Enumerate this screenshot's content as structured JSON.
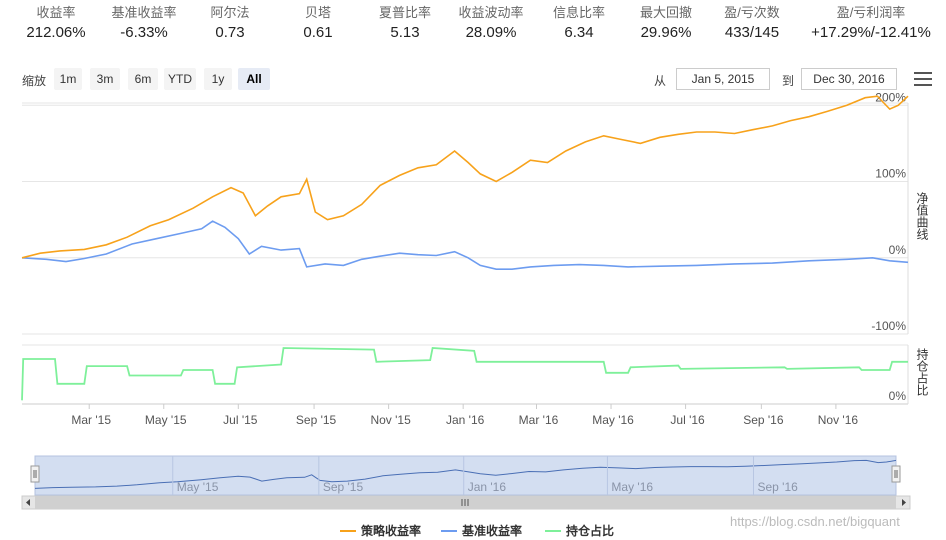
{
  "stats": [
    {
      "label": "收益率",
      "value": "212.06%"
    },
    {
      "label": "基准收益率",
      "value": "-6.33%"
    },
    {
      "label": "阿尔法",
      "value": "0.73"
    },
    {
      "label": "贝塔",
      "value": "0.61"
    },
    {
      "label": "夏普比率",
      "value": "5.13"
    },
    {
      "label": "收益波动率",
      "value": "28.09%"
    },
    {
      "label": "信息比率",
      "value": "6.34"
    },
    {
      "label": "最大回撤",
      "value": "29.96%"
    },
    {
      "label": "盈/亏次数",
      "value": "433/145"
    },
    {
      "label": "盈/亏利润率",
      "value": "+17.29%/-12.41%"
    }
  ],
  "toolbar": {
    "zoom_label": "缩放",
    "buttons": [
      "1m",
      "3m",
      "6m",
      "YTD",
      "1y",
      "All"
    ],
    "active": "All",
    "from_label": "从",
    "from_value": "Jan 5, 2015",
    "to_label": "到",
    "to_value": "Dec 30, 2016"
  },
  "colors": {
    "strategy": "#f7a21b",
    "benchmark": "#6d9cf0",
    "position": "#7ef09a",
    "navigator_fill": "#cbd8ef"
  },
  "chart_data": {
    "type": "line",
    "x_range": [
      "2015-01-05",
      "2016-12-30"
    ],
    "x_ticks": [
      "Mar '15",
      "May '15",
      "Jul '15",
      "Sep '15",
      "Nov '15",
      "Jan '16",
      "Mar '16",
      "May '16",
      "Jul '16",
      "Sep '16",
      "Nov '16"
    ],
    "navigator_ticks": [
      "May '15",
      "Sep '15",
      "Jan '16",
      "May '16",
      "Sep '16"
    ],
    "main_axis": {
      "title": "净值曲线",
      "ticks": [
        "200%",
        "100%",
        "0%",
        "-100%"
      ],
      "ylim": [
        -100,
        200
      ]
    },
    "position_axis": {
      "title": "持仓占比",
      "ticks": [
        "0%"
      ],
      "ylim": [
        0,
        100
      ]
    },
    "grid": true,
    "legend_position": "bottom",
    "series": [
      {
        "name": "策略收益率",
        "unit": "%",
        "points": [
          [
            "2015-01-05",
            0
          ],
          [
            "2015-01-20",
            6
          ],
          [
            "2015-02-05",
            9
          ],
          [
            "2015-02-25",
            11
          ],
          [
            "2015-03-15",
            17
          ],
          [
            "2015-04-01",
            27
          ],
          [
            "2015-04-20",
            42
          ],
          [
            "2015-05-05",
            50
          ],
          [
            "2015-05-25",
            65
          ],
          [
            "2015-06-10",
            80
          ],
          [
            "2015-06-25",
            92
          ],
          [
            "2015-07-05",
            85
          ],
          [
            "2015-07-15",
            55
          ],
          [
            "2015-07-25",
            68
          ],
          [
            "2015-08-05",
            80
          ],
          [
            "2015-08-20",
            84
          ],
          [
            "2015-08-26",
            103
          ],
          [
            "2015-09-02",
            60
          ],
          [
            "2015-09-12",
            50
          ],
          [
            "2015-09-25",
            55
          ],
          [
            "2015-10-10",
            70
          ],
          [
            "2015-10-25",
            95
          ],
          [
            "2015-11-10",
            108
          ],
          [
            "2015-11-25",
            118
          ],
          [
            "2015-12-10",
            122
          ],
          [
            "2015-12-25",
            140
          ],
          [
            "2016-01-05",
            125
          ],
          [
            "2016-01-15",
            110
          ],
          [
            "2016-01-28",
            100
          ],
          [
            "2016-02-10",
            112
          ],
          [
            "2016-02-25",
            128
          ],
          [
            "2016-03-10",
            125
          ],
          [
            "2016-03-25",
            140
          ],
          [
            "2016-04-10",
            152
          ],
          [
            "2016-04-25",
            160
          ],
          [
            "2016-05-10",
            155
          ],
          [
            "2016-05-25",
            150
          ],
          [
            "2016-06-10",
            158
          ],
          [
            "2016-06-25",
            162
          ],
          [
            "2016-07-10",
            165
          ],
          [
            "2016-07-25",
            165
          ],
          [
            "2016-08-10",
            163
          ],
          [
            "2016-08-25",
            168
          ],
          [
            "2016-09-10",
            173
          ],
          [
            "2016-09-25",
            180
          ],
          [
            "2016-10-10",
            185
          ],
          [
            "2016-10-25",
            192
          ],
          [
            "2016-11-10",
            200
          ],
          [
            "2016-11-25",
            210
          ],
          [
            "2016-12-05",
            212
          ],
          [
            "2016-12-15",
            195
          ],
          [
            "2016-12-22",
            200
          ],
          [
            "2016-12-30",
            212
          ]
        ]
      },
      {
        "name": "基准收益率",
        "unit": "%",
        "points": [
          [
            "2015-01-05",
            0
          ],
          [
            "2015-01-25",
            -2
          ],
          [
            "2015-02-10",
            -5
          ],
          [
            "2015-02-25",
            -1
          ],
          [
            "2015-03-15",
            5
          ],
          [
            "2015-04-05",
            18
          ],
          [
            "2015-04-25",
            25
          ],
          [
            "2015-05-15",
            32
          ],
          [
            "2015-06-01",
            38
          ],
          [
            "2015-06-10",
            48
          ],
          [
            "2015-06-20",
            40
          ],
          [
            "2015-07-01",
            25
          ],
          [
            "2015-07-10",
            5
          ],
          [
            "2015-07-20",
            15
          ],
          [
            "2015-08-05",
            10
          ],
          [
            "2015-08-20",
            12
          ],
          [
            "2015-08-26",
            -12
          ],
          [
            "2015-09-10",
            -8
          ],
          [
            "2015-09-25",
            -10
          ],
          [
            "2015-10-10",
            -2
          ],
          [
            "2015-10-25",
            2
          ],
          [
            "2015-11-10",
            6
          ],
          [
            "2015-11-25",
            4
          ],
          [
            "2015-12-10",
            3
          ],
          [
            "2015-12-25",
            8
          ],
          [
            "2016-01-05",
            0
          ],
          [
            "2016-01-15",
            -10
          ],
          [
            "2016-01-28",
            -15
          ],
          [
            "2016-02-10",
            -15
          ],
          [
            "2016-02-25",
            -12
          ],
          [
            "2016-03-15",
            -10
          ],
          [
            "2016-04-05",
            -9
          ],
          [
            "2016-04-25",
            -10
          ],
          [
            "2016-05-15",
            -12
          ],
          [
            "2016-06-10",
            -11
          ],
          [
            "2016-07-10",
            -10
          ],
          [
            "2016-08-10",
            -8
          ],
          [
            "2016-09-10",
            -7
          ],
          [
            "2016-10-10",
            -4
          ],
          [
            "2016-11-10",
            -2
          ],
          [
            "2016-12-01",
            0
          ],
          [
            "2016-12-15",
            -4
          ],
          [
            "2016-12-30",
            -6
          ]
        ]
      },
      {
        "name": "持仓占比",
        "unit": "%",
        "points": [
          [
            "2015-01-05",
            5
          ],
          [
            "2015-01-06",
            80
          ],
          [
            "2015-02-01",
            80
          ],
          [
            "2015-02-03",
            35
          ],
          [
            "2015-02-25",
            35
          ],
          [
            "2015-02-27",
            67
          ],
          [
            "2015-04-01",
            67
          ],
          [
            "2015-04-03",
            50
          ],
          [
            "2015-05-15",
            50
          ],
          [
            "2015-05-17",
            60
          ],
          [
            "2015-06-10",
            60
          ],
          [
            "2015-06-12",
            35
          ],
          [
            "2015-06-28",
            35
          ],
          [
            "2015-06-30",
            65
          ],
          [
            "2015-08-05",
            70
          ],
          [
            "2015-08-07",
            100
          ],
          [
            "2015-10-20",
            97
          ],
          [
            "2015-10-22",
            75
          ],
          [
            "2015-12-05",
            78
          ],
          [
            "2015-12-07",
            100
          ],
          [
            "2016-01-10",
            95
          ],
          [
            "2016-01-12",
            75
          ],
          [
            "2016-04-25",
            75
          ],
          [
            "2016-04-27",
            55
          ],
          [
            "2016-05-15",
            55
          ],
          [
            "2016-05-17",
            65
          ],
          [
            "2016-06-25",
            68
          ],
          [
            "2016-06-27",
            62
          ],
          [
            "2016-09-20",
            65
          ],
          [
            "2016-09-22",
            62
          ],
          [
            "2016-11-20",
            65
          ],
          [
            "2016-11-22",
            60
          ],
          [
            "2016-12-15",
            60
          ],
          [
            "2016-12-17",
            75
          ],
          [
            "2016-12-30",
            75
          ]
        ]
      }
    ]
  },
  "legend": [
    "策略收益率",
    "基准收益率",
    "持仓占比"
  ],
  "watermark": "https://blog.csdn.net/bigquant"
}
